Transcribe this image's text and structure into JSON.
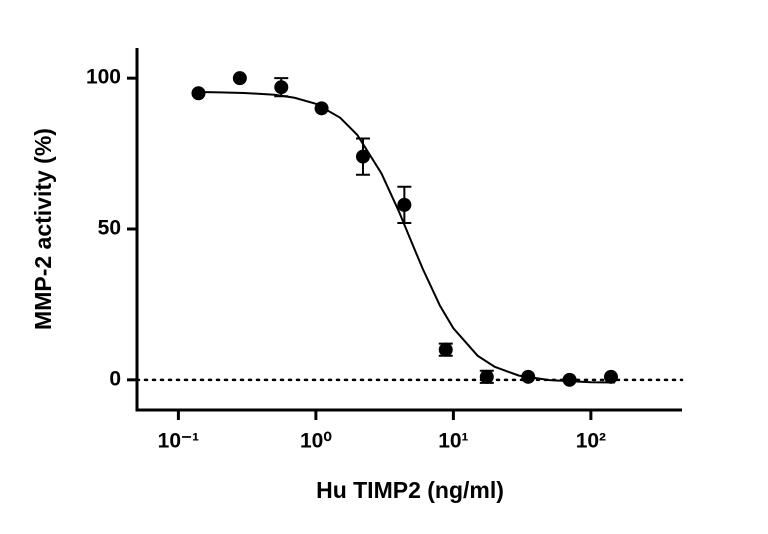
{
  "chart_data": {
    "type": "scatter",
    "x_label": "Hu TIMP2 (ng/ml)",
    "y_label": "MMP-2 activity (%)",
    "log_x": true,
    "xlim": [
      0.05,
      460
    ],
    "ylim": [
      -10,
      110
    ],
    "xticks": [
      {
        "value": 0.1,
        "label": "10⁻¹"
      },
      {
        "value": 1,
        "label": "10⁰"
      },
      {
        "value": 10,
        "label": "10¹"
      },
      {
        "value": 100,
        "label": "10²"
      }
    ],
    "yticks": [
      0,
      50,
      100
    ],
    "hline": {
      "value": 0,
      "style": "dotted"
    },
    "series": [
      {
        "kind": "points",
        "color": "#000000",
        "x": [
          0.14,
          0.28,
          0.56,
          1.1,
          2.2,
          4.4,
          8.8,
          17.5,
          35,
          70,
          140
        ],
        "values": [
          95,
          100,
          97,
          90,
          74,
          58,
          10,
          1,
          1,
          0,
          1
        ],
        "errors": [
          0,
          0,
          3,
          0,
          6,
          6,
          2,
          2,
          0,
          0,
          0
        ]
      },
      {
        "kind": "fit",
        "color": "#000000",
        "x": [
          0.14,
          0.2,
          0.3,
          0.5,
          0.7,
          1,
          1.5,
          2,
          3,
          4,
          5,
          6,
          8,
          10,
          15,
          20,
          30,
          50,
          100,
          150
        ],
        "values": [
          95.4,
          95.3,
          95.1,
          94.5,
          93.5,
          91.5,
          86.9,
          81.2,
          68.4,
          56.0,
          45.3,
          36.7,
          24.5,
          17.1,
          8.0,
          4.3,
          1.4,
          -0.1,
          -0.8,
          -0.9
        ]
      }
    ]
  }
}
